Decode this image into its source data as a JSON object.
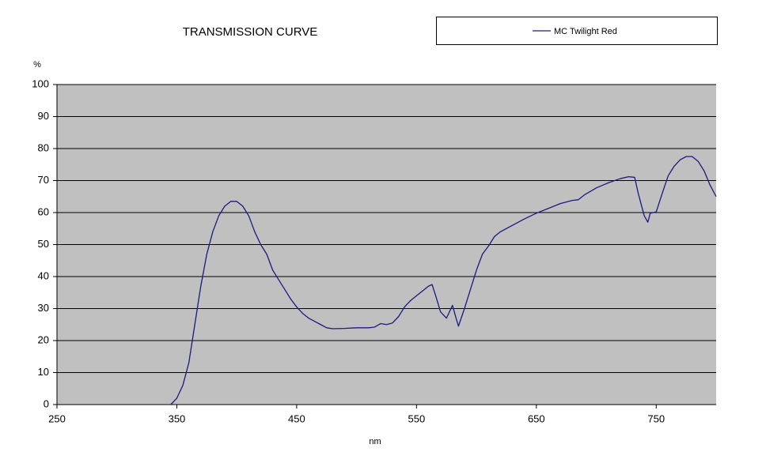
{
  "chart_data": {
    "type": "line",
    "title": "TRANSMISSION CURVE",
    "x_label": "nm",
    "y_label": "%",
    "x": [
      345,
      350,
      355,
      360,
      365,
      370,
      375,
      380,
      385,
      390,
      395,
      400,
      405,
      410,
      415,
      420,
      425,
      430,
      435,
      440,
      445,
      450,
      455,
      460,
      465,
      470,
      475,
      480,
      490,
      500,
      510,
      515,
      520,
      525,
      530,
      535,
      540,
      545,
      550,
      555,
      560,
      563,
      566,
      570,
      575,
      580,
      583,
      585,
      590,
      595,
      600,
      605,
      610,
      615,
      620,
      630,
      640,
      650,
      660,
      670,
      680,
      685,
      690,
      700,
      710,
      720,
      727,
      732,
      735,
      740,
      743,
      745,
      750,
      755,
      760,
      765,
      770,
      775,
      780,
      785,
      790,
      795,
      800
    ],
    "series": [
      {
        "name": "MC Twilight Red",
        "color": "#1a1a80",
        "values": [
          0,
          2,
          6,
          13,
          25,
          37,
          47,
          54,
          59,
          62,
          63.5,
          63.5,
          62,
          59,
          54,
          50,
          47,
          42,
          39,
          36,
          33,
          30.5,
          28.5,
          27,
          26,
          25,
          24,
          23.7,
          23.8,
          24,
          24,
          24.2,
          25.3,
          25,
          25.5,
          27.5,
          30.5,
          32.5,
          34,
          35.5,
          37,
          37.5,
          34,
          29,
          27,
          31,
          27,
          24.5,
          30,
          36,
          42,
          47,
          49.5,
          52.5,
          54,
          56,
          58,
          59.8,
          61.3,
          62.8,
          63.8,
          64,
          65.5,
          67.7,
          69.3,
          70.6,
          71.2,
          71,
          66,
          59,
          57,
          59.8,
          60.2,
          66,
          71.5,
          74.5,
          76.5,
          77.5,
          77.5,
          76,
          73,
          68.5,
          65
        ]
      }
    ],
    "xlim": [
      250,
      800
    ],
    "xticks": [
      250,
      350,
      450,
      550,
      650,
      750
    ],
    "ylim": [
      0,
      100
    ],
    "yticks": [
      0,
      10,
      20,
      30,
      40,
      50,
      60,
      70,
      80,
      90,
      100
    ],
    "grid": true,
    "plot_background": "#c0c0c0",
    "legend": "top-right"
  }
}
